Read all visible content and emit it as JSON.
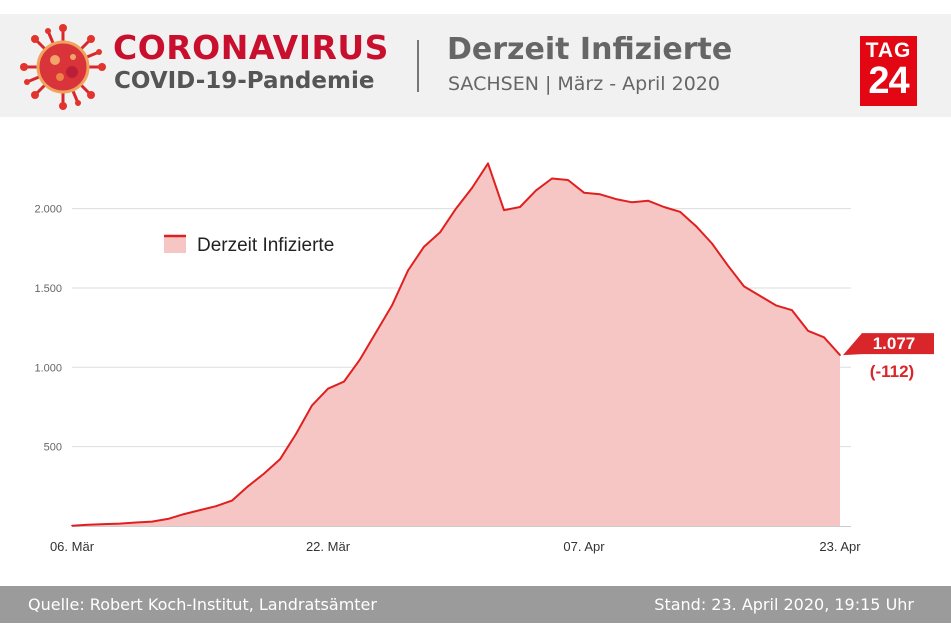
{
  "header": {
    "brand_title": "CORONAVIRUS",
    "brand_subtitle": "COVID-19-Pandemie",
    "title": "Derzeit Infizierte",
    "subtitle": "SACHSEN | März - April 2020",
    "logo_top": "TAG",
    "logo_number": "24",
    "virus_icon": "coronavirus-icon",
    "brand_color": "#c8102e"
  },
  "chart_data": {
    "type": "area",
    "series": [
      {
        "name": "Derzeit Infizierte",
        "color": "#e02020",
        "fill": "#f6c6c4",
        "values": [
          2,
          8,
          12,
          15,
          22,
          28,
          45,
          75,
          100,
          125,
          160,
          250,
          330,
          420,
          580,
          760,
          865,
          910,
          1050,
          1220,
          1390,
          1610,
          1760,
          1850,
          2000,
          2130,
          2285,
          1990,
          2010,
          2115,
          2190,
          2180,
          2100,
          2090,
          2060,
          2040,
          2050,
          2010,
          1980,
          1890,
          1780,
          1640,
          1510,
          1450,
          1390,
          1360,
          1230,
          1189,
          1077
        ]
      }
    ],
    "x_start": "2020-03-06",
    "x_ticks": [
      "06. Mär",
      "22. Mär",
      "07. Apr",
      "23. Apr"
    ],
    "y_ticks": [
      "500",
      "1.000",
      "1.500",
      "2.000"
    ],
    "y_tick_values": [
      500,
      1000,
      1500,
      2000
    ],
    "ylim": [
      0,
      2300
    ],
    "legend": {
      "label": "Derzeit Infizierte",
      "position": "top-left"
    },
    "grid": true,
    "annotation": {
      "value": "1.077",
      "change": "(-112)"
    }
  },
  "footer": {
    "source": "Quelle: Robert Koch-Institut, Landratsämter",
    "stand": "Stand: 23. April 2020, 19:15 Uhr"
  }
}
